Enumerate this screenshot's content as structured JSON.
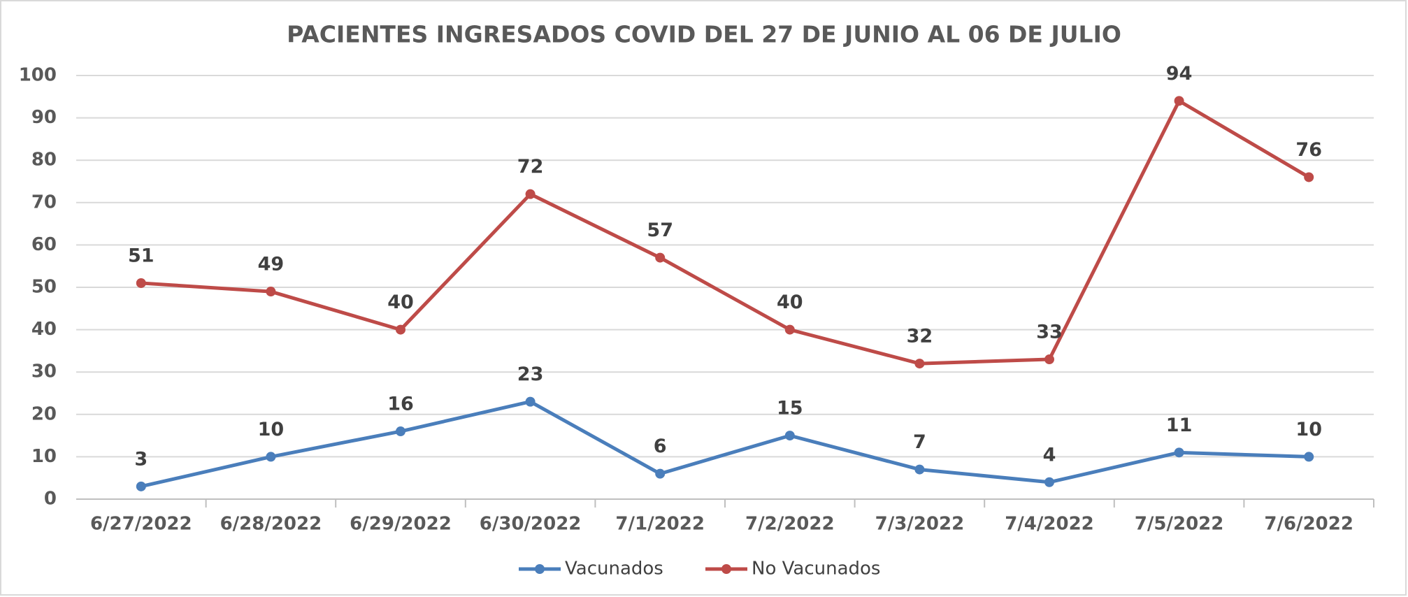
{
  "chart_data": {
    "type": "line",
    "title": "PACIENTES INGRESADOS COVID DEL 27 DE JUNIO AL 06 DE JULIO",
    "categories": [
      "6/27/2022",
      "6/28/2022",
      "6/29/2022",
      "6/30/2022",
      "7/1/2022",
      "7/2/2022",
      "7/3/2022",
      "7/4/2022",
      "7/5/2022",
      "7/6/2022"
    ],
    "series": [
      {
        "name": "Vacunados",
        "color": "#4a7ebb",
        "values": [
          3,
          10,
          16,
          23,
          6,
          15,
          7,
          4,
          11,
          10
        ]
      },
      {
        "name": "No Vacunados",
        "color": "#be4b48",
        "values": [
          51,
          49,
          40,
          72,
          57,
          40,
          32,
          33,
          94,
          76
        ]
      }
    ],
    "ylim": [
      0,
      100
    ],
    "yticks": [
      0,
      10,
      20,
      30,
      40,
      50,
      60,
      70,
      80,
      90,
      100
    ],
    "grid": true,
    "legend": "bottom"
  }
}
